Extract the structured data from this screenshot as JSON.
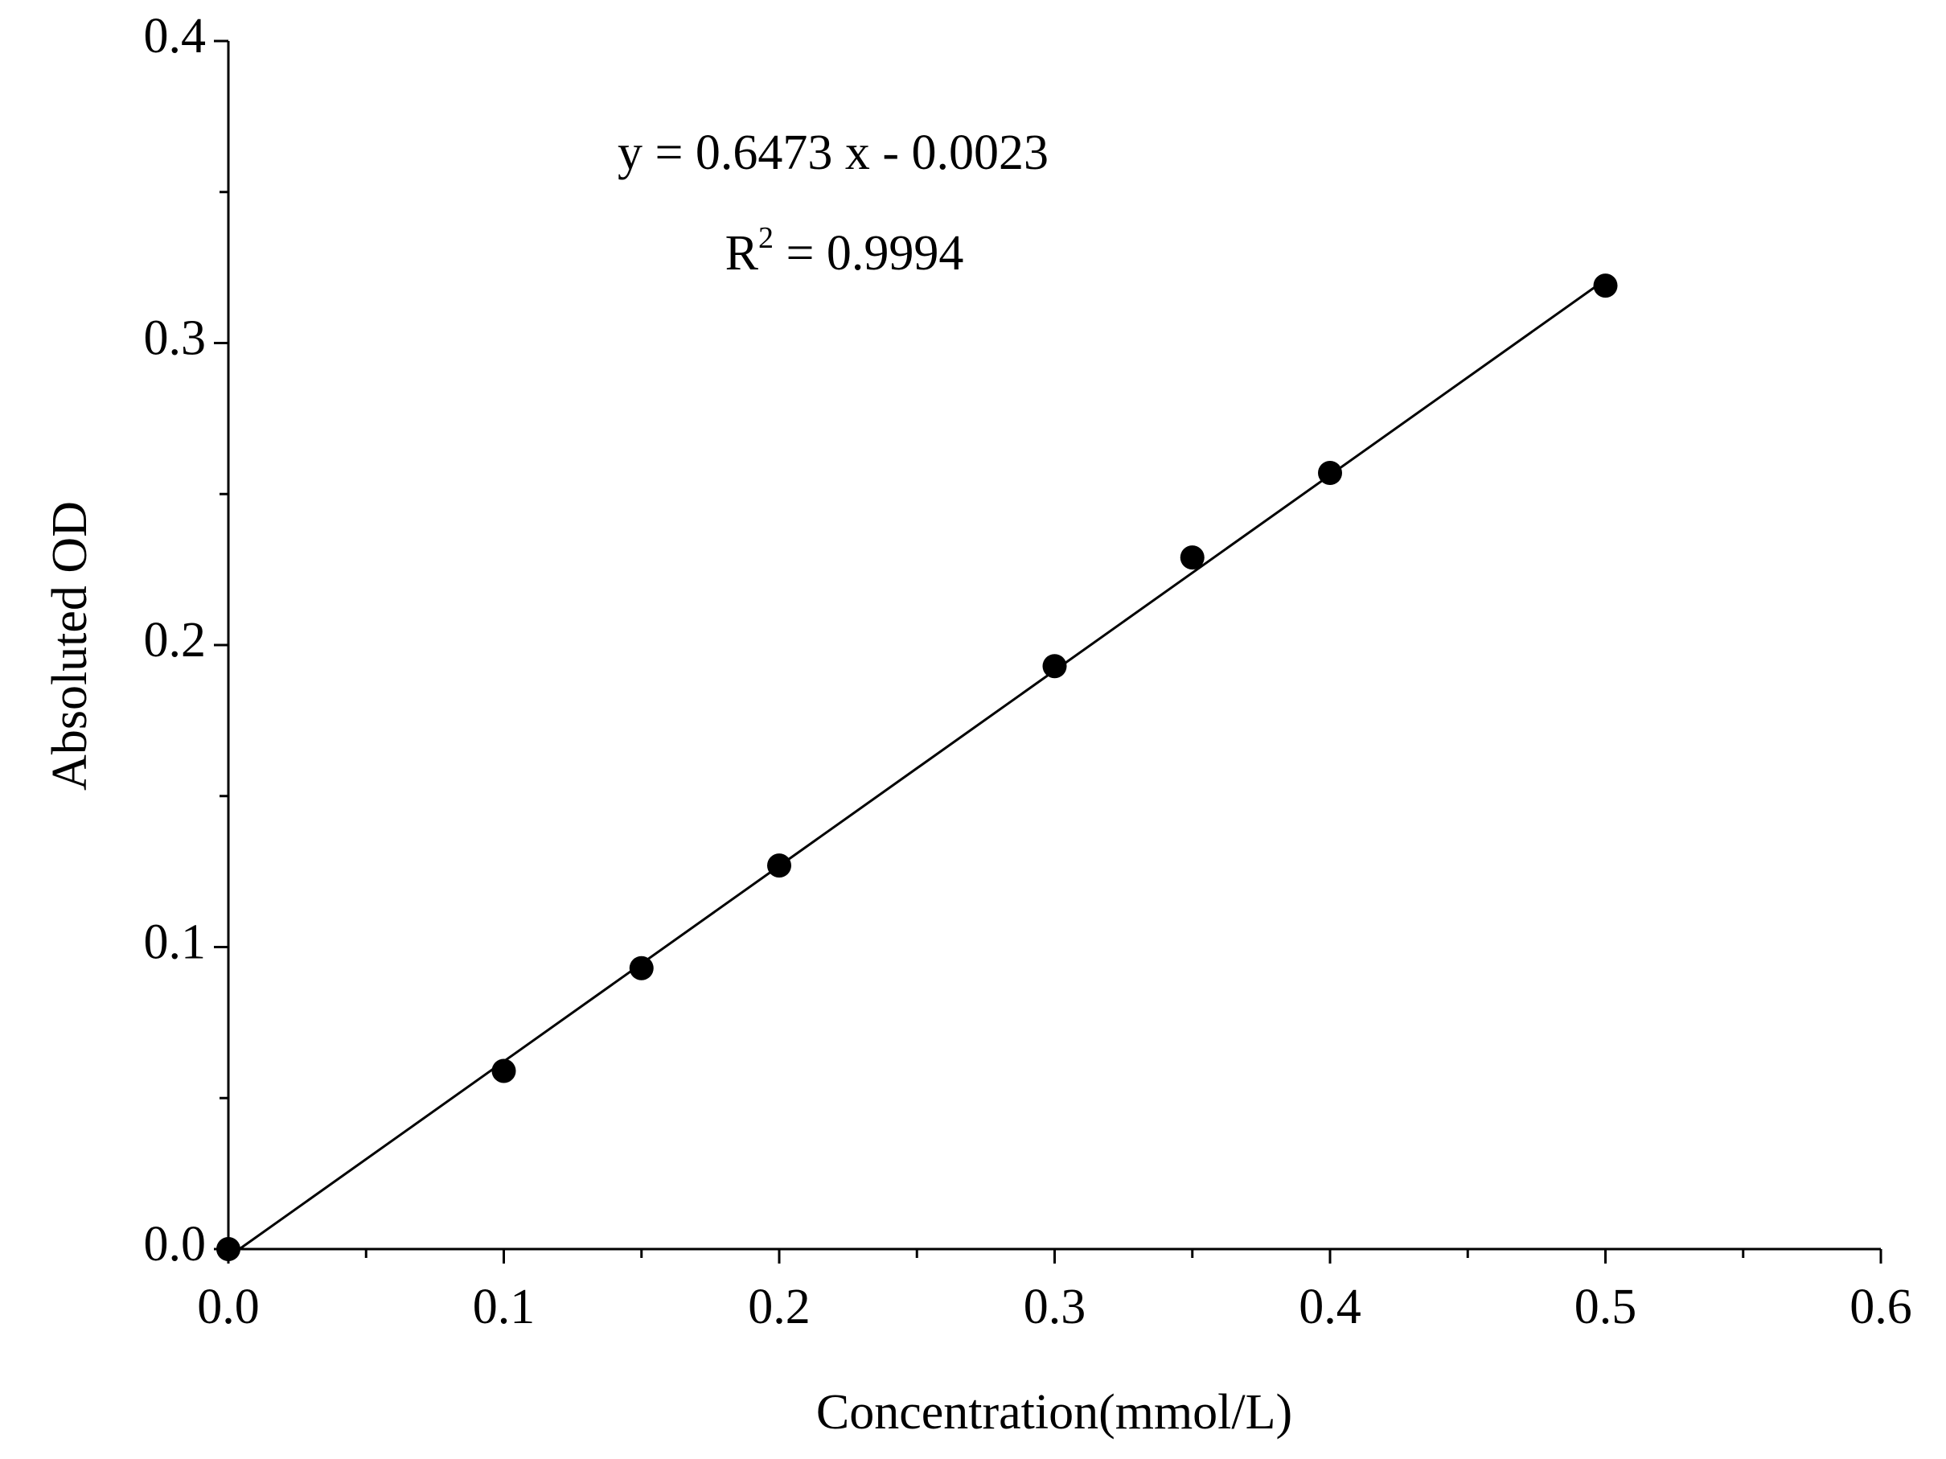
{
  "chart_data": {
    "type": "scatter",
    "x_label": "Concentration(mmol/L)",
    "y_label": "Absoluted OD",
    "x": [
      0,
      0.1,
      0.15,
      0.2,
      0.3,
      0.35,
      0.4,
      0.5
    ],
    "values": [
      0,
      0.059,
      0.093,
      0.127,
      0.193,
      0.229,
      0.257,
      0.319
    ],
    "color": "#000000",
    "fit_line": {
      "x": [
        0.004,
        0.5
      ],
      "y": [
        0,
        0.321
      ]
    },
    "equation": "y = 0.6473 x - 0.0023",
    "r_squared": {
      "base": "R",
      "sup": "2",
      "text": " = 0.9994"
    },
    "xlim": [
      0,
      0.6
    ],
    "ylim": [
      0,
      0.4
    ],
    "xticks": [
      {
        "value": 0,
        "label": "0.0"
      },
      0.1,
      0.2,
      0.3,
      0.4,
      0.5,
      0.6
    ],
    "yticks": [
      {
        "value": 0,
        "label": "0.0"
      },
      0.1,
      0.2,
      0.3,
      0.4
    ],
    "xminorticks": [
      0.05,
      0.15,
      0.25,
      0.35,
      0.45,
      0.55
    ],
    "yminorticks": [
      0.05,
      0.15,
      0.25,
      0.35
    ],
    "grid": false
  }
}
